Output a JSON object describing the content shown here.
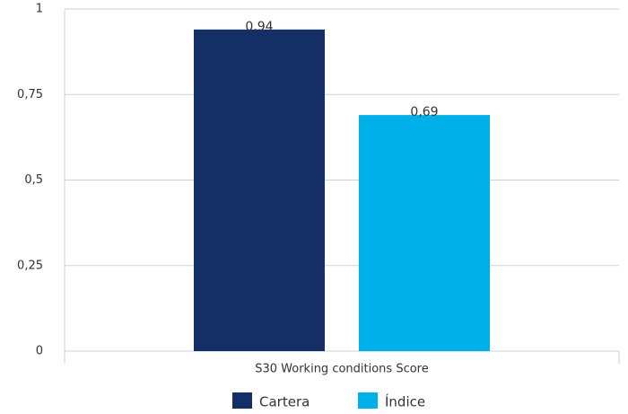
{
  "chart_data": {
    "type": "bar",
    "categories": [
      "S30 Working conditions Score"
    ],
    "series": [
      {
        "name": "Cartera",
        "color": "#132f66",
        "values": [
          0.94
        ],
        "value_labels": [
          "0,94"
        ]
      },
      {
        "name": "Índice",
        "color": "#00b0e8",
        "values": [
          0.69
        ],
        "value_labels": [
          "0,69"
        ]
      }
    ],
    "ylim": [
      0,
      1
    ],
    "yticks": [
      0,
      {
        "value": 0.25,
        "label": "0,25"
      },
      {
        "value": 0.5,
        "label": "0,5"
      },
      {
        "value": 0.75,
        "label": "0,75"
      },
      1
    ],
    "grid": true,
    "legend": "bottom"
  }
}
